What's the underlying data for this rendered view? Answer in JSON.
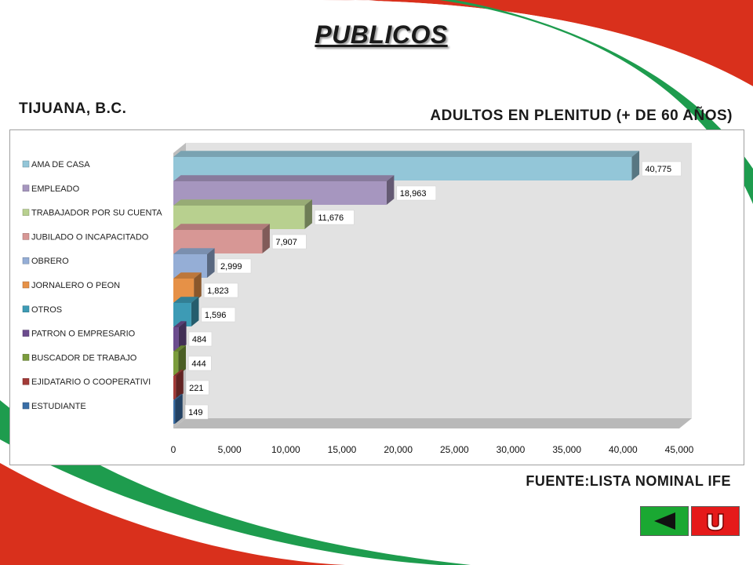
{
  "header": {
    "title": "PUBLICOS",
    "city": "TIJUANA, B.C.",
    "subtitle": "ADULTOS EN PLENITUD (+ DE 60 AÑOS)",
    "source": "FUENTE:LISTA NOMINAL IFE"
  },
  "navigation": {
    "back_icon": "triangle-left-icon",
    "return_icon": "u-turn-icon",
    "back_color": "#1aa832",
    "return_color": "#e51a1a"
  },
  "chart_data": {
    "type": "bar",
    "orientation": "horizontal",
    "categories": [
      "AMA DE CASA",
      "EMPLEADO",
      "TRABAJADOR POR SU CUENTA",
      "JUBILADO O INCAPACITADO",
      "OBRERO",
      "JORNALERO O PEON",
      "OTROS",
      "PATRON O EMPRESARIO",
      "BUSCADOR DE TRABAJO",
      "EJIDATARIO O COOPERATIVI",
      "ESTUDIANTE"
    ],
    "values": [
      40775,
      18963,
      11676,
      7907,
      2999,
      1823,
      1596,
      484,
      444,
      221,
      149
    ],
    "value_labels": [
      "40,775",
      "18,963",
      "11,676",
      "7,907",
      "2,999",
      "1,823",
      "1,596",
      "484",
      "444",
      "221",
      "149"
    ],
    "colors": [
      "#93c6d8",
      "#a696bf",
      "#b8d08f",
      "#d79795",
      "#95aed6",
      "#e69147",
      "#3d9bb5",
      "#6c4c8e",
      "#7b9c3c",
      "#a33b38",
      "#3a6ea6"
    ],
    "xlim": [
      0,
      45000
    ],
    "x_ticks": [
      "0",
      "5,000",
      "10,000",
      "15,000",
      "20,000",
      "25,000",
      "30,000",
      "35,000",
      "40,000",
      "45,000"
    ],
    "xlabel": "",
    "ylabel": "",
    "legend": "left",
    "grid": false,
    "style": "3d"
  }
}
